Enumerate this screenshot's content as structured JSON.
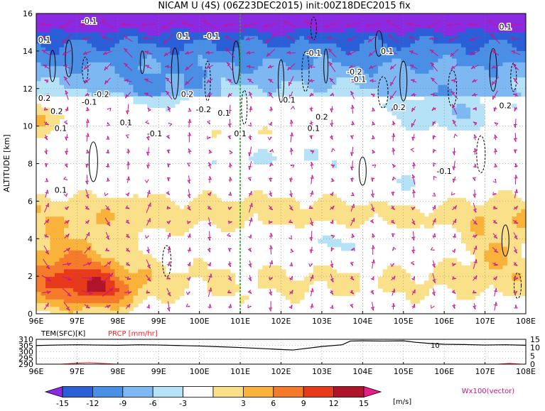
{
  "title": "NICAM U (4S) (06Z23DEC2015) init:00Z18DEC2015 fix",
  "chart_data": [
    {
      "type": "heatmap",
      "title": "NICAM U (4S) (06Z23DEC2015) init:00Z18DEC2015 fix",
      "xlabel": "",
      "ylabel": "ALTITUDE [km]",
      "x_ticks": [
        "96E",
        "97E",
        "98E",
        "99E",
        "100E",
        "101E",
        "102E",
        "103E",
        "104E",
        "105E",
        "106E",
        "107E",
        "108E"
      ],
      "xlim": [
        96,
        108
      ],
      "y_ticks": [
        "0",
        "2",
        "4",
        "6",
        "8",
        "10",
        "12",
        "14",
        "16"
      ],
      "ylim": [
        0,
        16
      ],
      "grid": true,
      "marker_line_lon": 101,
      "contour_labels": [
        {
          "text": "-0.1",
          "lon": 97.3,
          "alt": 15.6
        },
        {
          "text": "0.1",
          "lon": 96.2,
          "alt": 14.6
        },
        {
          "text": "0.1",
          "lon": 99.6,
          "alt": 14.8
        },
        {
          "text": "-0.1",
          "lon": 100.3,
          "alt": 14.8
        },
        {
          "text": "-0.1",
          "lon": 102.8,
          "alt": 13.9
        },
        {
          "text": "0.1",
          "lon": 104.6,
          "alt": 14.0
        },
        {
          "text": "0.1",
          "lon": 107.5,
          "alt": 15.3
        },
        {
          "text": "0.2",
          "lon": 96.2,
          "alt": 11.5
        },
        {
          "text": "-0.2",
          "lon": 97.6,
          "alt": 11.7
        },
        {
          "text": "0.2",
          "lon": 99.7,
          "alt": 11.7
        },
        {
          "text": "-0.2",
          "lon": 100.1,
          "alt": 10.9
        },
        {
          "text": "0.1",
          "lon": 100.6,
          "alt": 10.7
        },
        {
          "text": "0.2",
          "lon": 96.5,
          "alt": 10.8
        },
        {
          "text": "0.1",
          "lon": 96.6,
          "alt": 9.9
        },
        {
          "text": "-0.1",
          "lon": 97.3,
          "alt": 11.3
        },
        {
          "text": "0.1",
          "lon": 98.2,
          "alt": 10.2
        },
        {
          "text": "-0.1",
          "lon": 98.9,
          "alt": 9.6
        },
        {
          "text": "0.1",
          "lon": 101.0,
          "alt": 9.6
        },
        {
          "text": "0.1",
          "lon": 102.2,
          "alt": 11.4
        },
        {
          "text": "0.2",
          "lon": 103.0,
          "alt": 10.5
        },
        {
          "text": "0.1",
          "lon": 102.8,
          "alt": 9.9
        },
        {
          "text": "-0.2",
          "lon": 103.8,
          "alt": 12.9
        },
        {
          "text": "-0.1",
          "lon": 103.9,
          "alt": 12.5
        },
        {
          "text": "0.2",
          "lon": 104.9,
          "alt": 11.0
        },
        {
          "text": "-0.1",
          "lon": 106.0,
          "alt": 7.6
        },
        {
          "text": "0.2",
          "lon": 107.5,
          "alt": 11.1
        },
        {
          "text": "0.1",
          "lon": 96.6,
          "alt": 6.6
        }
      ]
    },
    {
      "type": "line",
      "x_ticks": [
        "96E",
        "97E",
        "98E",
        "99E",
        "100E",
        "101E",
        "102E",
        "103E",
        "104E",
        "105E",
        "106E",
        "107E",
        "108E"
      ],
      "xlim": [
        96,
        108
      ],
      "left_axis": {
        "label": "TEM(SFC)[K]",
        "ticks": [
          "290",
          "295",
          "300",
          "305",
          "310"
        ],
        "ylim": [
          290,
          310
        ]
      },
      "right_axis": {
        "label": "PRCP [mm/hr]",
        "ticks": [
          "0",
          "5",
          "10",
          "15"
        ],
        "ylim": [
          0,
          15
        ]
      },
      "annotation": "10",
      "series": [
        {
          "name": "TEM(SFC)[K]",
          "color": "#000000",
          "x": [
            96,
            96.5,
            97,
            97.5,
            98,
            98.5,
            99,
            99.5,
            100,
            100.5,
            101,
            101.5,
            102,
            102.3,
            102.6,
            103,
            103.5,
            103.7,
            104,
            104.5,
            105,
            105.3,
            105.6,
            106,
            106.5,
            107,
            107.5,
            108
          ],
          "y": [
            305.0,
            305.4,
            305.6,
            305.4,
            305.2,
            305.6,
            305.4,
            305.0,
            304.6,
            304.0,
            303.4,
            302.6,
            301.8,
            301.4,
            302.6,
            304.2,
            305.6,
            308.6,
            308.8,
            308.6,
            308.8,
            307.6,
            306.8,
            306.0,
            305.8,
            305.4,
            305.6,
            305.2
          ]
        },
        {
          "name": "PRCP [mm/hr]",
          "color": "#ff2020",
          "x": [
            96,
            96.6,
            97,
            97.3,
            97.6,
            98,
            100,
            102,
            104,
            106,
            107.3,
            107.6,
            107.9,
            108
          ],
          "y": [
            0,
            0,
            0.6,
            0.9,
            0.5,
            0,
            0,
            0,
            0,
            0,
            0,
            0.5,
            0,
            0
          ]
        }
      ]
    }
  ],
  "colorbar": {
    "labels": [
      "-15",
      "-12",
      "-9",
      "-6",
      "-3",
      "3",
      "6",
      "9",
      "12",
      "15"
    ],
    "colors": [
      "#8a2be2",
      "#2a5fd8",
      "#4a8fe6",
      "#7db8f2",
      "#b5e2f7",
      "#ffffff",
      "#fbe08a",
      "#f9b23a",
      "#f57a2a",
      "#e83a1a",
      "#b0142a",
      "#e81c8a"
    ],
    "unit": "[m/s]"
  },
  "vector_label": "Wx100(vector)"
}
